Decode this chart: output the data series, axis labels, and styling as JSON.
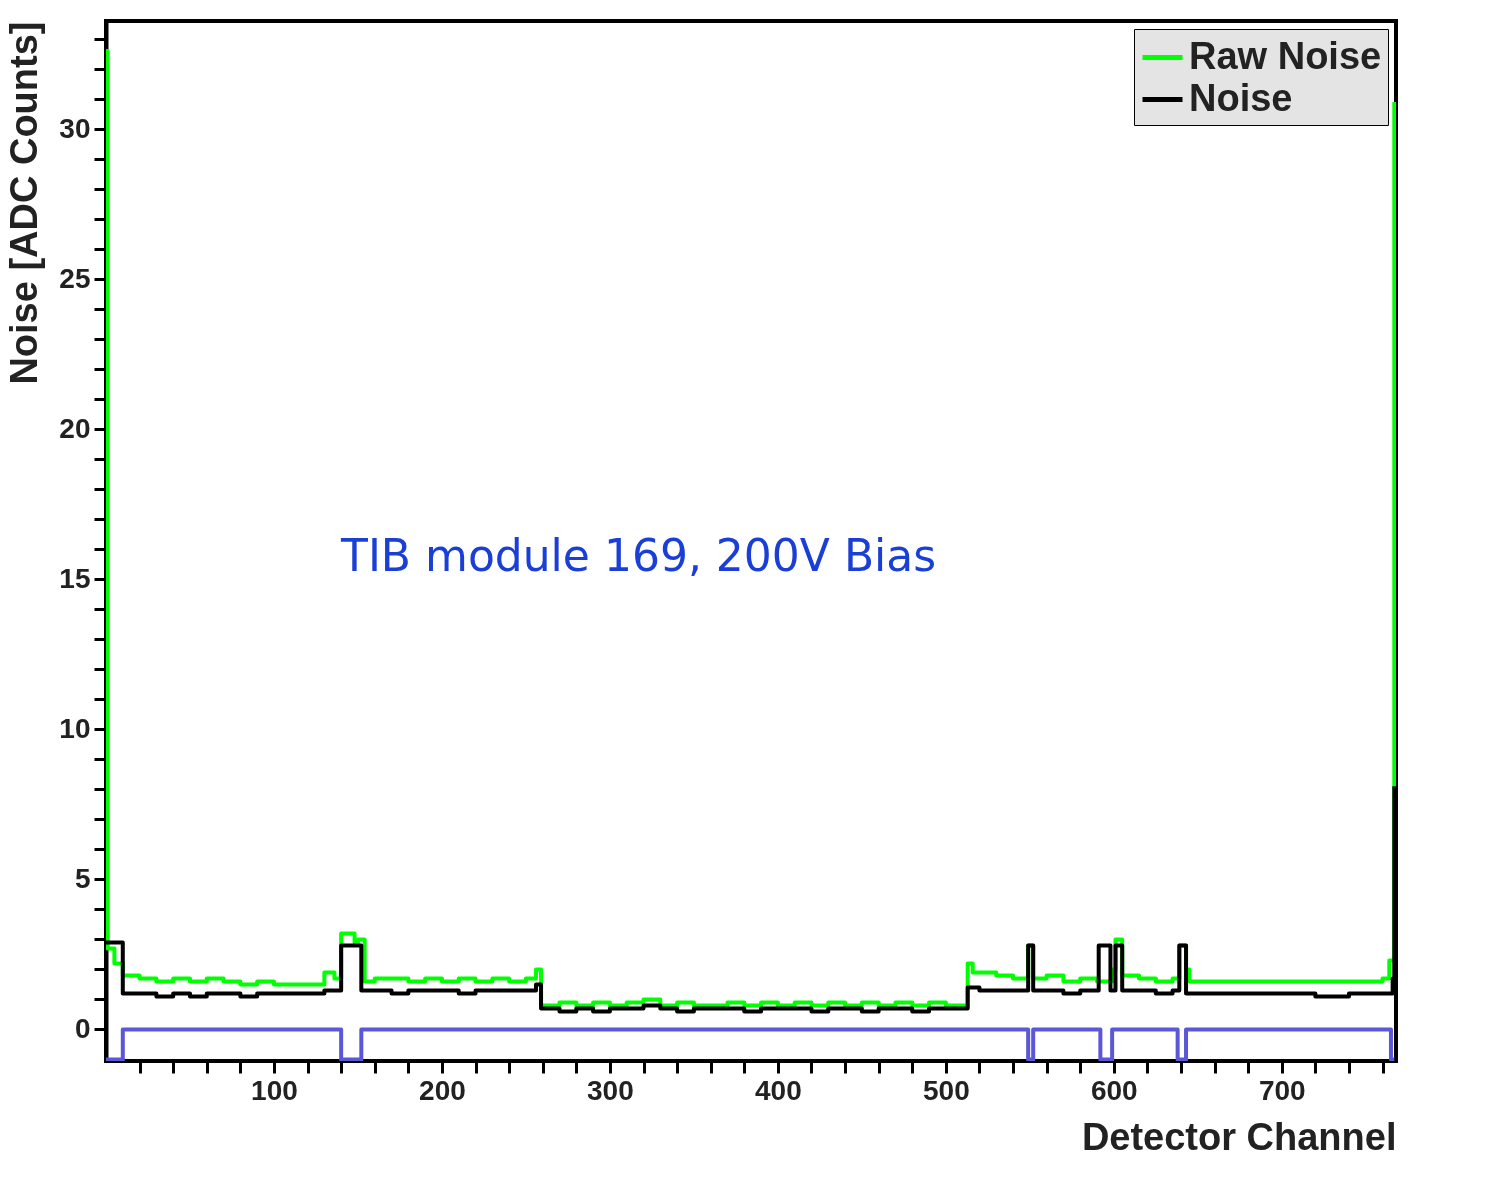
{
  "chart_data": {
    "type": "step",
    "xlabel": "Detector Channel",
    "ylabel": "Noise [ADC Counts]",
    "annotations": [
      "TIB module 169, 200V Bias"
    ],
    "xlim": [
      0,
      768
    ],
    "ylim": [
      -1.05,
      33.6
    ],
    "xticks": [
      {
        "value": 20,
        "label": null
      },
      {
        "value": 40,
        "label": null
      },
      {
        "value": 60,
        "label": null
      },
      {
        "value": 80,
        "label": null
      },
      100,
      {
        "value": 120,
        "label": null
      },
      {
        "value": 140,
        "label": null
      },
      {
        "value": 160,
        "label": null
      },
      {
        "value": 180,
        "label": null
      },
      200,
      {
        "value": 220,
        "label": null
      },
      {
        "value": 240,
        "label": null
      },
      {
        "value": 260,
        "label": null
      },
      {
        "value": 280,
        "label": null
      },
      300,
      {
        "value": 320,
        "label": null
      },
      {
        "value": 340,
        "label": null
      },
      {
        "value": 360,
        "label": null
      },
      {
        "value": 380,
        "label": null
      },
      400,
      {
        "value": 420,
        "label": null
      },
      {
        "value": 440,
        "label": null
      },
      {
        "value": 460,
        "label": null
      },
      {
        "value": 480,
        "label": null
      },
      500,
      {
        "value": 520,
        "label": null
      },
      {
        "value": 540,
        "label": null
      },
      {
        "value": 560,
        "label": null
      },
      {
        "value": 580,
        "label": null
      },
      600,
      {
        "value": 620,
        "label": null
      },
      {
        "value": 640,
        "label": null
      },
      {
        "value": 660,
        "label": null
      },
      {
        "value": 680,
        "label": null
      },
      700,
      {
        "value": 720,
        "label": null
      },
      {
        "value": 740,
        "label": null
      },
      {
        "value": 760,
        "label": null
      }
    ],
    "yticks": [
      0,
      {
        "value": 1,
        "label": null
      },
      {
        "value": 2,
        "label": null
      },
      {
        "value": 3,
        "label": null
      },
      {
        "value": 4,
        "label": null
      },
      5,
      {
        "value": 6,
        "label": null
      },
      {
        "value": 7,
        "label": null
      },
      {
        "value": 8,
        "label": null
      },
      {
        "value": 9,
        "label": null
      },
      10,
      {
        "value": 11,
        "label": null
      },
      {
        "value": 12,
        "label": null
      },
      {
        "value": 13,
        "label": null
      },
      {
        "value": 14,
        "label": null
      },
      15,
      {
        "value": 16,
        "label": null
      },
      {
        "value": 17,
        "label": null
      },
      {
        "value": 18,
        "label": null
      },
      {
        "value": 19,
        "label": null
      },
      20,
      {
        "value": 21,
        "label": null
      },
      {
        "value": 22,
        "label": null
      },
      {
        "value": 23,
        "label": null
      },
      {
        "value": 24,
        "label": null
      },
      25,
      {
        "value": 26,
        "label": null
      },
      {
        "value": 27,
        "label": null
      },
      {
        "value": 28,
        "label": null
      },
      {
        "value": 29,
        "label": null
      },
      30,
      {
        "value": 31,
        "label": null
      },
      {
        "value": 32,
        "label": null
      },
      {
        "value": 33,
        "label": null
      }
    ],
    "legend": "top right",
    "series": [
      {
        "name": "Raw Noise",
        "color": "#00ff00",
        "x": [
          0,
          1,
          5,
          10,
          20,
          30,
          40,
          50,
          60,
          70,
          80,
          90,
          100,
          110,
          120,
          130,
          136,
          140,
          148,
          150,
          154,
          160,
          170,
          180,
          190,
          200,
          210,
          220,
          230,
          240,
          250,
          256,
          259,
          270,
          280,
          290,
          300,
          310,
          320,
          330,
          340,
          350,
          360,
          370,
          380,
          390,
          400,
          410,
          420,
          430,
          440,
          450,
          460,
          470,
          480,
          490,
          500,
          513,
          516,
          530,
          540,
          549,
          552,
          560,
          570,
          580,
          590,
          599,
          601,
          605,
          615,
          625,
          635,
          639,
          643,
          645,
          660,
          680,
          700,
          720,
          740,
          760,
          764,
          767
        ],
        "values": [
          32.6,
          2.7,
          2.2,
          1.8,
          1.7,
          1.6,
          1.7,
          1.6,
          1.7,
          1.6,
          1.5,
          1.6,
          1.5,
          1.5,
          1.5,
          1.9,
          1.7,
          3.2,
          2.9,
          3.0,
          1.6,
          1.7,
          1.7,
          1.6,
          1.7,
          1.6,
          1.7,
          1.6,
          1.7,
          1.6,
          1.7,
          2.0,
          0.8,
          0.9,
          0.8,
          0.9,
          0.8,
          0.9,
          1.0,
          0.8,
          0.9,
          0.8,
          0.8,
          0.9,
          0.8,
          0.9,
          0.8,
          0.9,
          0.8,
          0.9,
          0.8,
          0.9,
          0.8,
          0.9,
          0.8,
          0.9,
          0.8,
          2.2,
          1.9,
          1.8,
          1.7,
          2.8,
          1.7,
          1.8,
          1.6,
          1.7,
          1.6,
          2.0,
          3.0,
          1.8,
          1.7,
          1.6,
          1.7,
          2.8,
          2.0,
          1.6,
          1.6,
          1.6,
          1.6,
          1.6,
          1.6,
          1.7,
          2.3,
          30.9
        ]
      },
      {
        "name": "Noise",
        "color": "#000000",
        "x": [
          0,
          10,
          20,
          30,
          40,
          50,
          60,
          70,
          80,
          90,
          100,
          110,
          120,
          130,
          140,
          152,
          160,
          170,
          180,
          190,
          200,
          210,
          220,
          230,
          240,
          250,
          256,
          259,
          270,
          280,
          290,
          300,
          310,
          320,
          330,
          340,
          350,
          360,
          370,
          380,
          390,
          400,
          410,
          420,
          430,
          440,
          450,
          460,
          470,
          480,
          490,
          500,
          513,
          520,
          530,
          540,
          549,
          552,
          560,
          570,
          580,
          591,
          598,
          601,
          605,
          615,
          625,
          635,
          639,
          643,
          660,
          680,
          700,
          720,
          740,
          760,
          766,
          767
        ],
        "values": [
          2.9,
          1.2,
          1.2,
          1.1,
          1.2,
          1.1,
          1.2,
          1.2,
          1.1,
          1.2,
          1.2,
          1.2,
          1.2,
          1.3,
          2.8,
          1.3,
          1.3,
          1.2,
          1.3,
          1.3,
          1.3,
          1.2,
          1.3,
          1.3,
          1.3,
          1.3,
          1.5,
          0.7,
          0.6,
          0.7,
          0.6,
          0.7,
          0.7,
          0.8,
          0.7,
          0.6,
          0.7,
          0.7,
          0.7,
          0.6,
          0.7,
          0.7,
          0.7,
          0.6,
          0.7,
          0.7,
          0.6,
          0.7,
          0.7,
          0.6,
          0.7,
          0.7,
          1.4,
          1.3,
          1.3,
          1.3,
          2.8,
          1.3,
          1.3,
          1.2,
          1.3,
          2.8,
          1.3,
          2.8,
          1.3,
          1.3,
          1.2,
          1.3,
          2.8,
          1.2,
          1.2,
          1.2,
          1.2,
          1.1,
          1.2,
          1.2,
          1.7,
          8.1
        ]
      },
      {
        "color": "#5a57d9",
        "x": [
          0,
          10,
          140,
          152,
          549,
          552,
          592,
          599,
          638,
          643,
          765,
          767
        ],
        "values": [
          -1,
          0,
          -1,
          0,
          -1,
          0,
          -1,
          0,
          -1,
          0,
          -1,
          -1
        ]
      }
    ]
  }
}
